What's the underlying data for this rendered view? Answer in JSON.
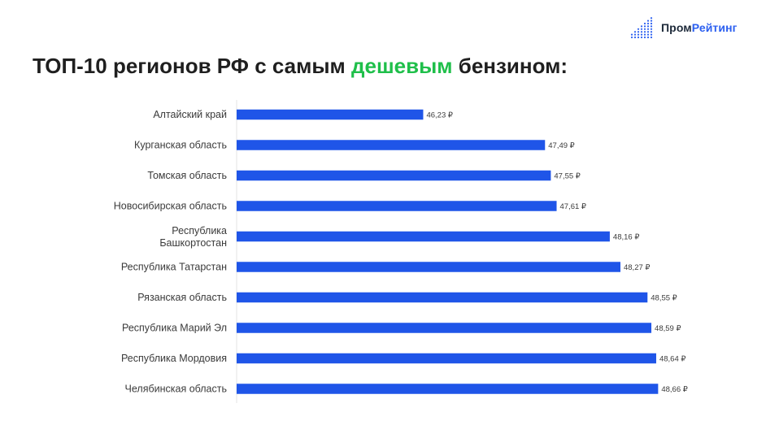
{
  "logo": {
    "part1": "Пром",
    "part2": "Рейтинг",
    "colors": {
      "dark": "#1e2a3a",
      "accent": "#2b5ff0"
    }
  },
  "title": {
    "before": "ТОП-10 регионов РФ с самым ",
    "highlight": "дешевым",
    "after": " бензином:",
    "highlight_color": "#1fbf4a"
  },
  "chart_data": {
    "type": "bar",
    "orientation": "horizontal",
    "bar_color": "#1f55e8",
    "categories": [
      "Алтайский край",
      "Курганская область",
      "Томская область",
      "Новосибирская область",
      "Республика Башкортостан",
      "Республика Татарстан",
      "Рязанская область",
      "Республика Марий Эл",
      "Республика Мордовия",
      "Челябинская область"
    ],
    "values": [
      46.23,
      47.49,
      47.55,
      47.61,
      48.16,
      48.27,
      48.55,
      48.59,
      48.64,
      48.66
    ],
    "value_labels": [
      "46,23 ₽",
      "47,49 ₽",
      "47,55 ₽",
      "47,61 ₽",
      "48,16 ₽",
      "48,27 ₽",
      "48,55 ₽",
      "48,59 ₽",
      "48,64 ₽",
      "48,66 ₽"
    ],
    "xlim": [
      44.3,
      48.8
    ],
    "grid": false,
    "legend": "none"
  }
}
